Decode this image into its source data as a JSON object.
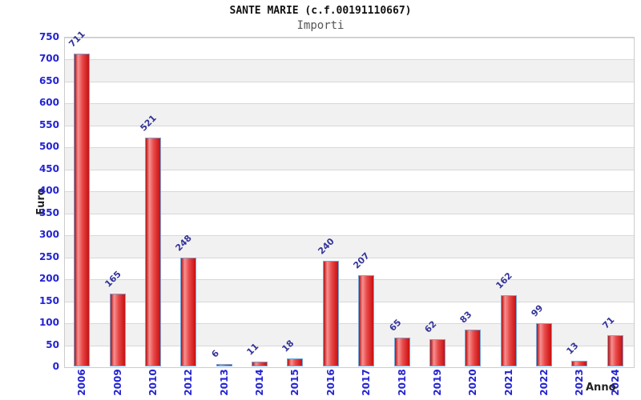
{
  "chart_data": {
    "type": "bar",
    "title": "SANTE MARIE (c.f.00191110667)",
    "subtitle": "Importi",
    "xlabel": "Anno",
    "ylabel": "Euro",
    "categories": [
      "2006",
      "2009",
      "2010",
      "2012",
      "2013",
      "2014",
      "2015",
      "2016",
      "2017",
      "2018",
      "2019",
      "2020",
      "2021",
      "2022",
      "2023",
      "2024"
    ],
    "values": [
      711,
      165,
      521,
      248,
      6,
      11,
      18,
      240,
      207,
      65,
      62,
      83,
      162,
      99,
      13,
      71
    ],
    "ylim": [
      0,
      750
    ],
    "ytick_step": 50,
    "legend": "none",
    "grid": "alternating-horizontal-bands-with-gridlines",
    "colors": {
      "title_text": "#111111",
      "subtitle_text": "#555555",
      "axis_title_text": "#222222",
      "tick_label": "#2323d3",
      "value_label": "#343499",
      "bar_border": "#6fa8dc",
      "bar_gradient_left": "#b01010",
      "bar_gradient_highlight": "#f79090",
      "bar_gradient_mid": "#e84848",
      "bar_gradient_right": "#c81010",
      "band_gray": "#f1f1f1",
      "band_white": "#ffffff",
      "gridline": "#d8d8d8",
      "plot_border": "#cccccc",
      "background": "#ffffff"
    }
  }
}
